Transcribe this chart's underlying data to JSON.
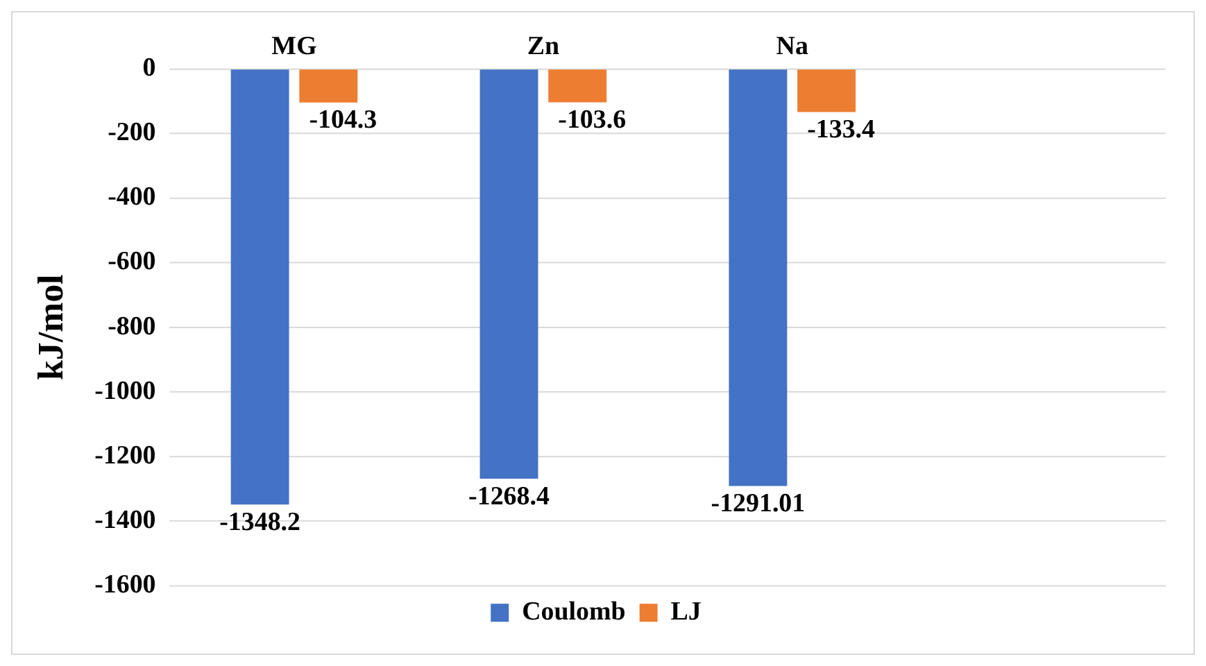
{
  "chart_data": {
    "type": "bar",
    "ylabel": "kJ/mol",
    "categories": [
      "MG",
      "Zn",
      "Na",
      null
    ],
    "series": [
      {
        "name": "Coulomb",
        "color": "#4472c4",
        "values": [
          -1348.2,
          -1268.4,
          -1291.01,
          null
        ]
      },
      {
        "name": "LJ",
        "color": "#ed7d31",
        "values": [
          -104.3,
          -103.6,
          -133.4,
          null
        ]
      }
    ],
    "ylim": [
      -1600,
      0
    ],
    "yticks": [
      -1600,
      -1400,
      -1200,
      -1000,
      -800,
      -600,
      -400,
      -200,
      0
    ],
    "grid": "y",
    "legend": "bottom",
    "data_labels": true
  }
}
